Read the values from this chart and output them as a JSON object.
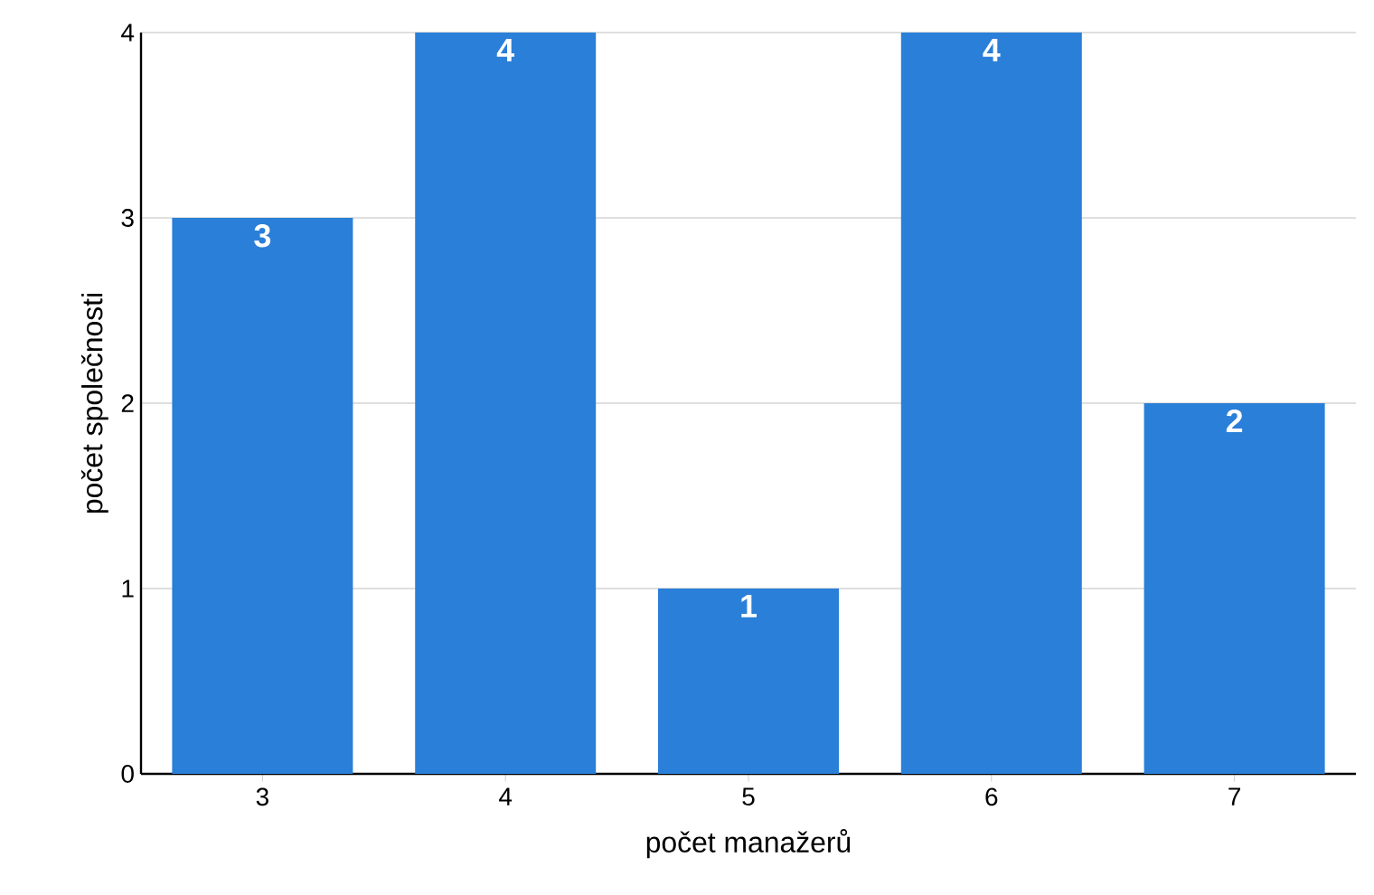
{
  "chart_data": {
    "type": "bar",
    "xlabel": "počet manažerů",
    "ylabel": "počet společnosti",
    "categories": [
      "3",
      "4",
      "5",
      "6",
      "7"
    ],
    "values": [
      3,
      4,
      1,
      4,
      2
    ],
    "color": "#2a7fd8",
    "ylim": [
      0,
      4
    ],
    "yticks": [
      0,
      1,
      2,
      3,
      4
    ],
    "grid": "y",
    "data_labels": true
  }
}
